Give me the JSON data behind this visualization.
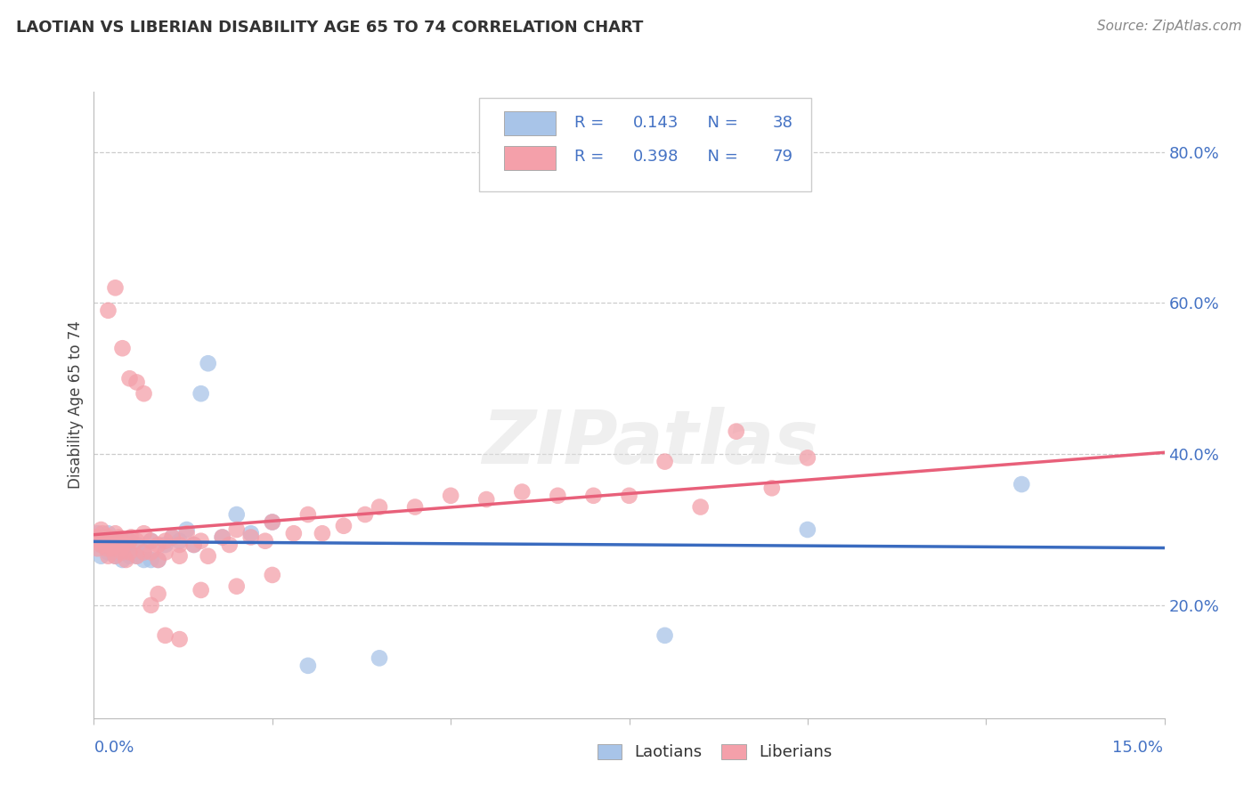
{
  "title": "LAOTIAN VS LIBERIAN DISABILITY AGE 65 TO 74 CORRELATION CHART",
  "source": "Source: ZipAtlas.com",
  "ylabel": "Disability Age 65 to 74",
  "ytick_labels": [
    "20.0%",
    "40.0%",
    "60.0%",
    "80.0%"
  ],
  "ytick_positions": [
    0.2,
    0.4,
    0.6,
    0.8
  ],
  "xmin": 0.0,
  "xmax": 0.15,
  "ymin": 0.05,
  "ymax": 0.88,
  "laotian_R": "0.143",
  "laotian_N": "38",
  "liberian_R": "0.398",
  "liberian_N": "79",
  "laotian_color": "#a8c4e8",
  "liberian_color": "#f4a0aa",
  "laotian_line_color": "#3a6bbf",
  "liberian_line_color": "#e8607a",
  "label_color": "#4472c4",
  "legend_text_color": "#4472c4",
  "laotian_x": [
    0.0005,
    0.001,
    0.001,
    0.0015,
    0.002,
    0.002,
    0.0025,
    0.003,
    0.003,
    0.0035,
    0.004,
    0.004,
    0.0045,
    0.005,
    0.005,
    0.006,
    0.006,
    0.007,
    0.007,
    0.008,
    0.008,
    0.009,
    0.01,
    0.011,
    0.012,
    0.013,
    0.014,
    0.015,
    0.016,
    0.018,
    0.02,
    0.022,
    0.025,
    0.03,
    0.04,
    0.08,
    0.1,
    0.13
  ],
  "laotian_y": [
    0.295,
    0.28,
    0.265,
    0.29,
    0.295,
    0.27,
    0.285,
    0.265,
    0.27,
    0.285,
    0.26,
    0.28,
    0.275,
    0.285,
    0.265,
    0.28,
    0.265,
    0.27,
    0.26,
    0.285,
    0.26,
    0.26,
    0.28,
    0.29,
    0.285,
    0.3,
    0.28,
    0.48,
    0.52,
    0.29,
    0.32,
    0.295,
    0.31,
    0.12,
    0.13,
    0.16,
    0.3,
    0.36
  ],
  "liberian_x": [
    0.0003,
    0.0005,
    0.0008,
    0.001,
    0.001,
    0.0012,
    0.0015,
    0.0018,
    0.002,
    0.002,
    0.0022,
    0.0025,
    0.0028,
    0.003,
    0.003,
    0.0032,
    0.0035,
    0.0038,
    0.004,
    0.004,
    0.0042,
    0.0045,
    0.005,
    0.005,
    0.0052,
    0.006,
    0.006,
    0.007,
    0.007,
    0.008,
    0.008,
    0.009,
    0.009,
    0.01,
    0.01,
    0.011,
    0.012,
    0.012,
    0.013,
    0.014,
    0.015,
    0.016,
    0.018,
    0.019,
    0.02,
    0.022,
    0.024,
    0.025,
    0.028,
    0.03,
    0.032,
    0.035,
    0.038,
    0.04,
    0.045,
    0.05,
    0.055,
    0.06,
    0.065,
    0.07,
    0.075,
    0.08,
    0.085,
    0.09,
    0.095,
    0.1,
    0.002,
    0.003,
    0.004,
    0.005,
    0.006,
    0.007,
    0.008,
    0.009,
    0.01,
    0.012,
    0.015,
    0.02,
    0.025
  ],
  "liberian_y": [
    0.29,
    0.275,
    0.285,
    0.28,
    0.3,
    0.295,
    0.285,
    0.275,
    0.29,
    0.265,
    0.28,
    0.275,
    0.285,
    0.295,
    0.265,
    0.28,
    0.29,
    0.275,
    0.285,
    0.27,
    0.28,
    0.26,
    0.285,
    0.27,
    0.29,
    0.285,
    0.265,
    0.295,
    0.27,
    0.285,
    0.27,
    0.28,
    0.26,
    0.285,
    0.27,
    0.29,
    0.28,
    0.265,
    0.295,
    0.28,
    0.285,
    0.265,
    0.29,
    0.28,
    0.3,
    0.29,
    0.285,
    0.31,
    0.295,
    0.32,
    0.295,
    0.305,
    0.32,
    0.33,
    0.33,
    0.345,
    0.34,
    0.35,
    0.345,
    0.345,
    0.345,
    0.39,
    0.33,
    0.43,
    0.355,
    0.395,
    0.59,
    0.62,
    0.54,
    0.5,
    0.495,
    0.48,
    0.2,
    0.215,
    0.16,
    0.155,
    0.22,
    0.225,
    0.24
  ]
}
